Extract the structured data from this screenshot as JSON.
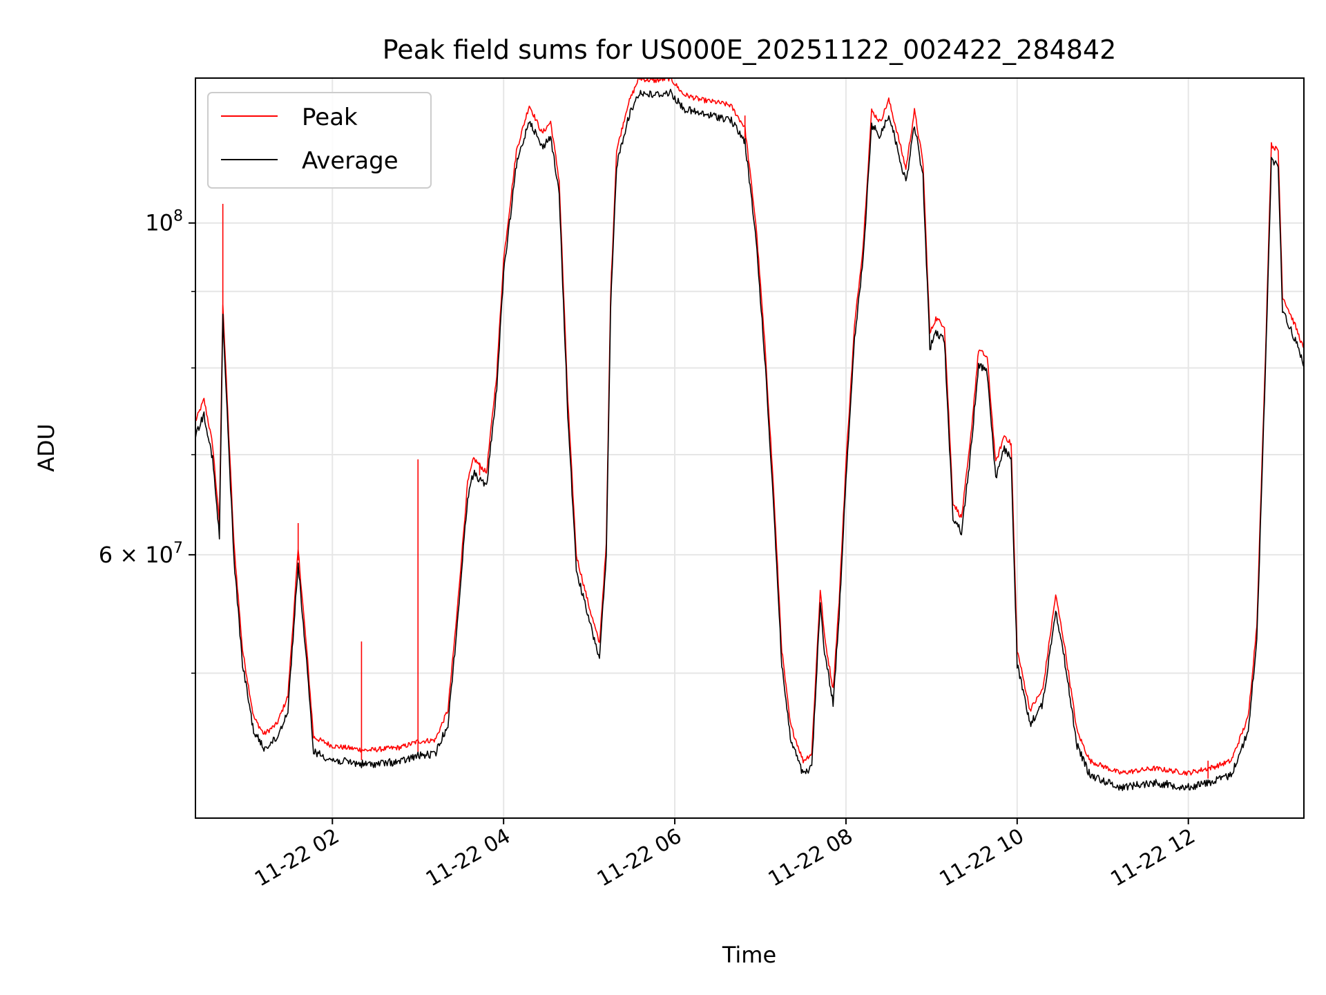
{
  "chart_data": {
    "type": "line",
    "title": "Peak field sums for US000E_20251122_002422_284842",
    "xlabel": "Time",
    "ylabel": "ADU",
    "yscale": "log",
    "ylim": [
      40000000,
      125000000
    ],
    "xlim": [
      0.4,
      13.35
    ],
    "x_unit": "hours since 2025-11-22 00:00",
    "grid": true,
    "legend_position": "top-left",
    "x_ticks": [
      {
        "value": 2,
        "label": "11-22 02"
      },
      {
        "value": 4,
        "label": "11-22 04"
      },
      {
        "value": 6,
        "label": "11-22 06"
      },
      {
        "value": 8,
        "label": "11-22 08"
      },
      {
        "value": 10,
        "label": "11-22 10"
      },
      {
        "value": 12,
        "label": "11-22 12"
      }
    ],
    "y_ticks": [
      {
        "value": 100000000,
        "label_base": "10",
        "label_exp": "8"
      },
      {
        "value": 60000000,
        "label_base": "6 × 10",
        "label_exp": "7"
      }
    ],
    "y_minor_gridlines": [
      50000000,
      70000000,
      80000000,
      90000000
    ],
    "series": [
      {
        "name": "Peak",
        "color": "#ff0000",
        "spikes": [
          {
            "x": 0.72,
            "y": 103000000
          },
          {
            "x": 1.6,
            "y": 63000000
          },
          {
            "x": 2.34,
            "y": 52500000
          },
          {
            "x": 3.0,
            "y": 69500000
          },
          {
            "x": 3.72,
            "y": 69000000
          },
          {
            "x": 6.82,
            "y": 118000000
          },
          {
            "x": 12.23,
            "y": 43700000
          }
        ]
      },
      {
        "name": "Average",
        "color": "#000000",
        "points": [
          [
            0.4,
            72500000
          ],
          [
            0.5,
            75000000
          ],
          [
            0.6,
            70000000
          ],
          [
            0.68,
            62000000
          ],
          [
            0.72,
            87000000
          ],
          [
            0.78,
            73000000
          ],
          [
            0.85,
            60000000
          ],
          [
            0.95,
            51000000
          ],
          [
            1.08,
            46000000
          ],
          [
            1.2,
            44800000
          ],
          [
            1.35,
            45500000
          ],
          [
            1.48,
            47500000
          ],
          [
            1.6,
            59500000
          ],
          [
            1.7,
            51000000
          ],
          [
            1.78,
            44600000
          ],
          [
            2.0,
            44000000
          ],
          [
            2.4,
            43700000
          ],
          [
            2.8,
            43900000
          ],
          [
            3.0,
            44300000
          ],
          [
            3.2,
            44400000
          ],
          [
            3.35,
            46500000
          ],
          [
            3.45,
            53500000
          ],
          [
            3.58,
            66000000
          ],
          [
            3.65,
            68500000
          ],
          [
            3.8,
            67000000
          ],
          [
            3.92,
            78000000
          ],
          [
            4.0,
            93000000
          ],
          [
            4.15,
            110000000
          ],
          [
            4.3,
            118000000
          ],
          [
            4.45,
            113000000
          ],
          [
            4.55,
            115000000
          ],
          [
            4.65,
            105000000
          ],
          [
            4.75,
            75000000
          ],
          [
            4.85,
            59000000
          ],
          [
            5.0,
            54500000
          ],
          [
            5.12,
            51500000
          ],
          [
            5.2,
            60000000
          ],
          [
            5.25,
            88000000
          ],
          [
            5.32,
            110000000
          ],
          [
            5.45,
            118000000
          ],
          [
            5.58,
            123000000
          ],
          [
            5.75,
            122500000
          ],
          [
            5.95,
            123000000
          ],
          [
            6.1,
            120000000
          ],
          [
            6.3,
            119000000
          ],
          [
            6.5,
            118500000
          ],
          [
            6.65,
            118000000
          ],
          [
            6.82,
            114000000
          ],
          [
            6.95,
            98000000
          ],
          [
            7.05,
            82000000
          ],
          [
            7.15,
            66000000
          ],
          [
            7.25,
            51000000
          ],
          [
            7.35,
            45500000
          ],
          [
            7.5,
            43000000
          ],
          [
            7.6,
            43500000
          ],
          [
            7.7,
            56000000
          ],
          [
            7.75,
            52000000
          ],
          [
            7.85,
            48000000
          ],
          [
            7.92,
            55000000
          ],
          [
            8.0,
            68000000
          ],
          [
            8.1,
            84000000
          ],
          [
            8.2,
            95000000
          ],
          [
            8.3,
            117000000
          ],
          [
            8.4,
            115000000
          ],
          [
            8.5,
            119000000
          ],
          [
            8.6,
            113000000
          ],
          [
            8.7,
            107000000
          ],
          [
            8.8,
            117000000
          ],
          [
            8.9,
            108000000
          ],
          [
            8.98,
            83000000
          ],
          [
            9.05,
            85000000
          ],
          [
            9.15,
            84000000
          ],
          [
            9.25,
            64000000
          ],
          [
            9.35,
            62500000
          ],
          [
            9.45,
            70000000
          ],
          [
            9.55,
            81000000
          ],
          [
            9.65,
            80000000
          ],
          [
            9.75,
            68000000
          ],
          [
            9.85,
            71000000
          ],
          [
            9.93,
            70000000
          ],
          [
            10.0,
            51000000
          ],
          [
            10.15,
            46500000
          ],
          [
            10.3,
            48000000
          ],
          [
            10.45,
            55500000
          ],
          [
            10.55,
            51500000
          ],
          [
            10.7,
            45000000
          ],
          [
            10.85,
            43000000
          ],
          [
            11.2,
            42200000
          ],
          [
            11.6,
            42500000
          ],
          [
            12.0,
            42200000
          ],
          [
            12.3,
            42600000
          ],
          [
            12.5,
            43000000
          ],
          [
            12.7,
            46000000
          ],
          [
            12.8,
            53000000
          ],
          [
            12.9,
            80000000
          ],
          [
            12.97,
            111000000
          ],
          [
            13.05,
            110000000
          ],
          [
            13.1,
            88000000
          ],
          [
            13.25,
            84000000
          ],
          [
            13.35,
            81000000
          ]
        ]
      }
    ]
  }
}
